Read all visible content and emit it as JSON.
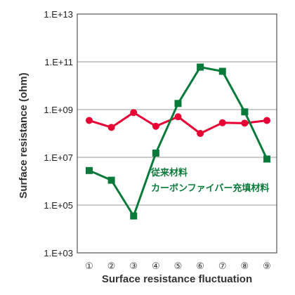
{
  "chart_data": {
    "type": "line",
    "xlabel": "Surface resistance fluctuation",
    "ylabel": "Surface resistance (ohm)",
    "y_scale": "log",
    "ylim": [
      1000,
      10000000000000
    ],
    "y_ticks": [
      {
        "value": 10000000000000,
        "label": "1.E+13"
      },
      {
        "value": 100000000000,
        "label": "1.E+11"
      },
      {
        "value": 1000000000,
        "label": "1.E+09"
      },
      {
        "value": 10000000,
        "label": "1.E+07"
      },
      {
        "value": 100000,
        "label": "1.E+05"
      },
      {
        "value": 1000,
        "label": "1.E+03"
      }
    ],
    "categories": [
      "①",
      "②",
      "③",
      "④",
      "⑤",
      "⑥",
      "⑦",
      "⑧",
      "⑨"
    ],
    "grid": "horizontal",
    "series": [
      {
        "color": "#e60033",
        "marker": "circle",
        "values": [
          350000000,
          180000000,
          750000000,
          200000000,
          500000000,
          100000000,
          280000000,
          270000000,
          350000000
        ]
      },
      {
        "color": "#0a7a3a",
        "marker": "square",
        "values": [
          2800000,
          1100000,
          35000,
          15000000,
          1800000000,
          60000000000,
          40000000000,
          800000000,
          8500000
        ]
      }
    ],
    "annotations": [
      {
        "text": "従来材料",
        "color": "#0a7a3a"
      },
      {
        "text": "カーボンファイバー充填材料",
        "color": "#0a7a3a"
      }
    ]
  }
}
